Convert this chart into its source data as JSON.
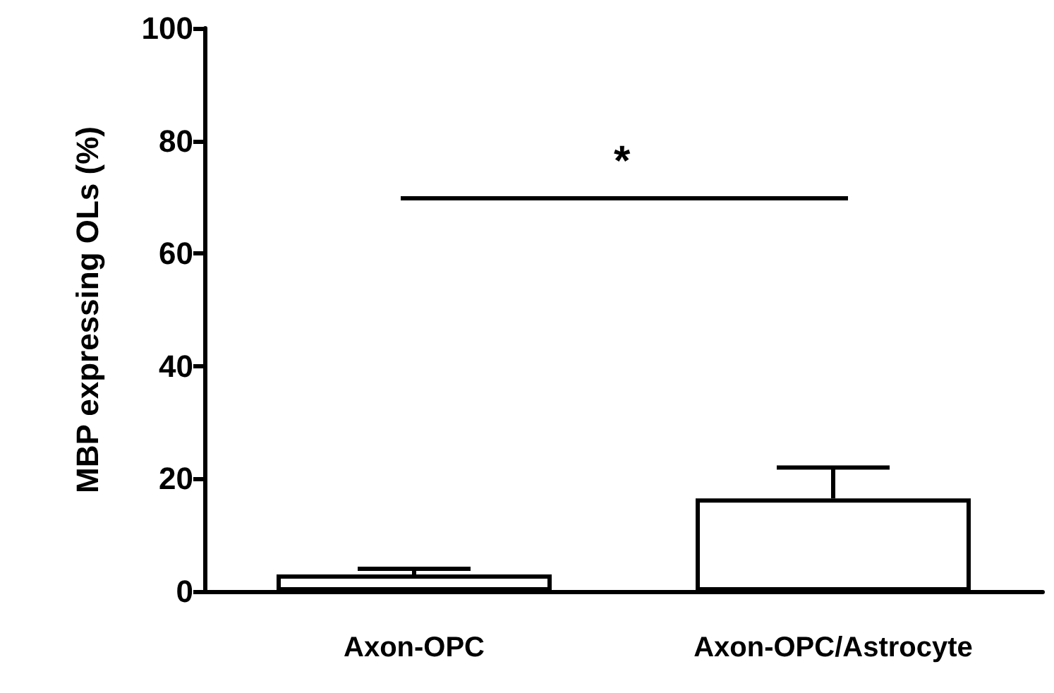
{
  "chart_data": {
    "type": "bar",
    "ylabel": "MBP expressing OLs (%)",
    "categories": [
      "Axon-OPC",
      "Axon-OPC/Astrocyte"
    ],
    "values": [
      3,
      16.5
    ],
    "color": "#ffffff",
    "errors": [
      [
        3,
        4
      ],
      [
        16.5,
        22
      ]
    ],
    "ylim": [
      0,
      100
    ],
    "yticks": [
      0,
      20,
      40,
      60,
      80,
      100
    ],
    "grid": false,
    "annotations": [
      "*"
    ]
  }
}
